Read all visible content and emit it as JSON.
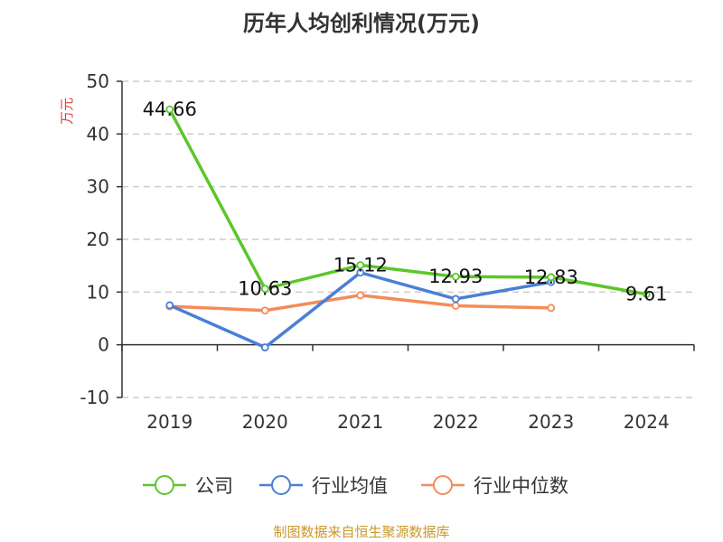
{
  "chart_data": {
    "type": "line",
    "title": "历年人均创利情况(万元)",
    "ylabel": "万元",
    "categories": [
      "2019",
      "2020",
      "2021",
      "2022",
      "2023",
      "2024"
    ],
    "ylim": [
      -10,
      50
    ],
    "yticks": [
      -10,
      0,
      10,
      20,
      30,
      40,
      50
    ],
    "grid": true,
    "legend_position": "bottom",
    "series": [
      {
        "name": "公司",
        "color": "#5bc72a",
        "values": [
          44.66,
          10.63,
          15.12,
          12.93,
          12.83,
          9.61
        ],
        "labels": [
          "44.66",
          "10.63",
          "15.12",
          "12.93",
          "12.83",
          "9.61"
        ]
      },
      {
        "name": "行业均值",
        "color": "#4a7fd8",
        "values": [
          7.5,
          -0.5,
          13.7,
          8.7,
          11.9,
          null
        ]
      },
      {
        "name": "行业中位数",
        "color": "#f48c5a",
        "values": [
          7.3,
          6.5,
          9.4,
          7.4,
          7.0,
          null
        ]
      }
    ]
  },
  "footer": {
    "source": "制图数据来自恒生聚源数据库",
    "source_color": "#c8982a"
  },
  "unit_color": "#e04040"
}
